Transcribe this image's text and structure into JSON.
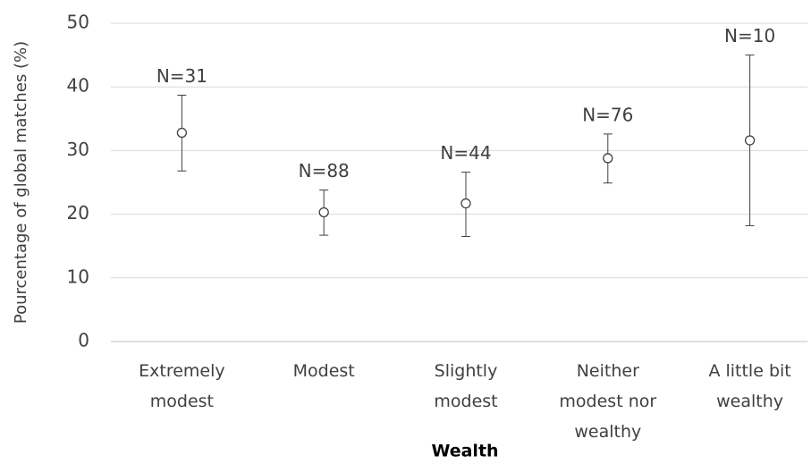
{
  "chart_data": {
    "type": "errorbar",
    "y_label": "Pourcentage of global matches (%)",
    "x_label": "Wealth",
    "categories": [
      "Extremely modest",
      "Modest",
      "Slightly modest",
      "Neither modest nor wealthy",
      "A little bit wealthy"
    ],
    "series": [
      {
        "color": "#404040",
        "values": [
          32.8,
          20.3,
          21.7,
          28.8,
          31.6
        ],
        "lower": [
          26.8,
          16.7,
          16.5,
          24.9,
          18.2
        ],
        "upper": [
          38.7,
          23.8,
          26.6,
          32.6,
          45.0
        ],
        "annotations": [
          "N=31",
          "N=88",
          "N=44",
          "N=76",
          "N=10"
        ]
      }
    ],
    "ylim": [
      0,
      50
    ],
    "yticks": [
      0,
      10,
      20,
      30,
      40,
      50
    ],
    "grid": true
  }
}
